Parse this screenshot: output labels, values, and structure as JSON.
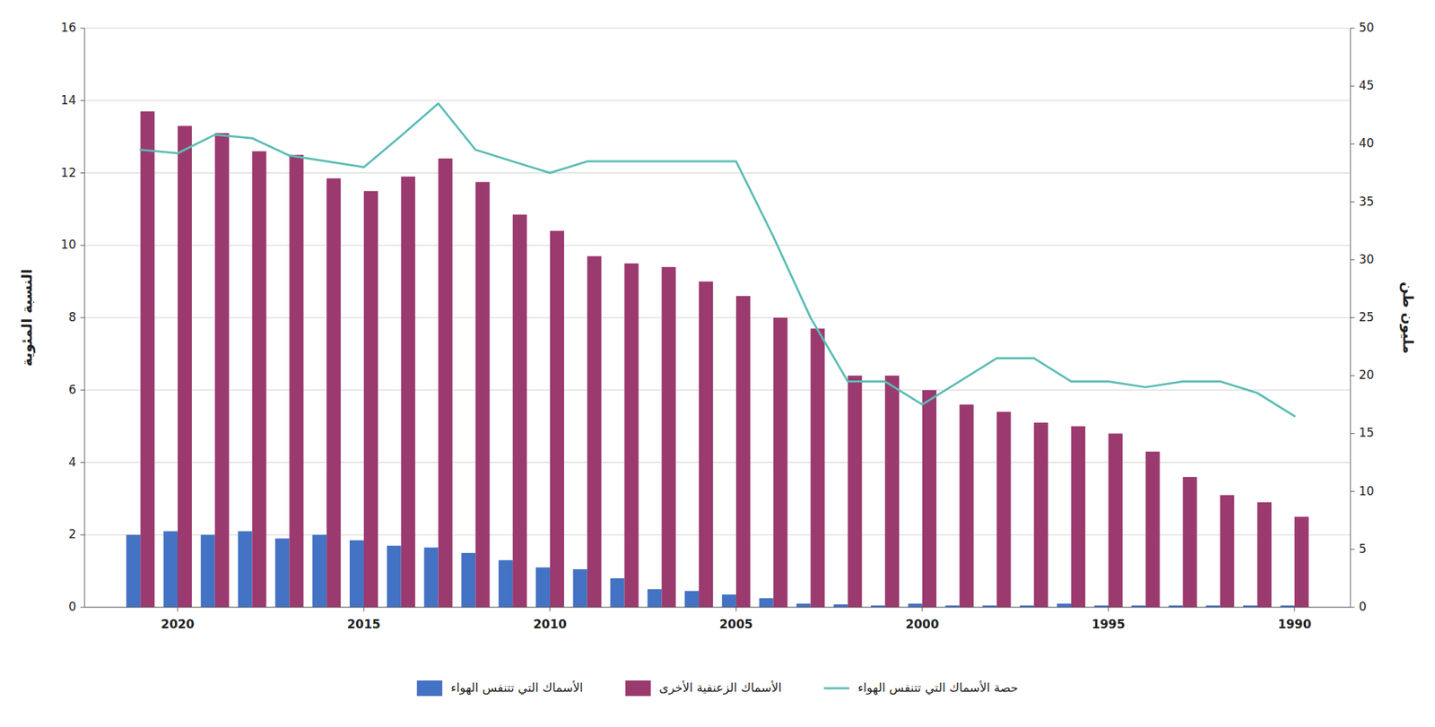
{
  "chart_data": {
    "type": "bar",
    "x": [
      2021,
      2020,
      2019,
      2018,
      2017,
      2016,
      2015,
      2014,
      2013,
      2012,
      2011,
      2010,
      2009,
      2008,
      2007,
      2006,
      2005,
      2004,
      2003,
      2002,
      2001,
      2000,
      1999,
      1998,
      1997,
      1996,
      1995,
      1994,
      1993,
      1992,
      1991,
      1990
    ],
    "xlim": [
      2022.5,
      1988.5
    ],
    "xticks": [
      2020,
      2015,
      2010,
      2005,
      2000,
      1995,
      1990
    ],
    "ylim": [
      0,
      16
    ],
    "yticks": [
      0,
      2,
      4,
      6,
      8,
      10,
      12,
      14,
      16
    ],
    "y2lim": [
      0,
      50
    ],
    "y2ticks": [
      0,
      5,
      10,
      15,
      20,
      25,
      30,
      35,
      40,
      45,
      50
    ],
    "ylabel": "النسبة المئوية",
    "y2label": "مليون طن",
    "grid": true,
    "legend": "bottom",
    "series": [
      {
        "name": "الأسماك التي تتنفس الهواء",
        "color": "#4472c4",
        "values": [
          2.0,
          2.1,
          2.0,
          2.1,
          1.9,
          2.0,
          1.85,
          1.7,
          1.65,
          1.5,
          1.3,
          1.1,
          1.05,
          0.8,
          0.5,
          0.45,
          0.35,
          0.25,
          0.1,
          0.08,
          0.05,
          0.1,
          0.05,
          0.05,
          0.05,
          0.1,
          0.05,
          0.05,
          0.05,
          0.05,
          0.05,
          0.05
        ]
      },
      {
        "name": "الأسماك الزعنفية الأخرى",
        "color": "#9b3a6e",
        "values": [
          13.7,
          13.3,
          13.1,
          12.6,
          12.5,
          11.85,
          11.5,
          11.9,
          12.4,
          11.75,
          10.85,
          10.4,
          9.7,
          9.5,
          9.4,
          9.0,
          8.6,
          8.0,
          7.7,
          6.4,
          6.4,
          6.0,
          5.6,
          5.4,
          5.1,
          5.0,
          4.8,
          4.3,
          3.6,
          3.1,
          2.9,
          2.5
        ]
      },
      {
        "name": "حصة الأسماك التي تتنفس الهواء",
        "color": "#5bbdb5",
        "type": "line",
        "axis": "y2",
        "values": [
          39.5,
          39.2,
          40.8,
          40.5,
          39.0,
          38.5,
          38.0,
          40.7,
          43.5,
          39.5,
          38.5,
          37.5,
          38.5,
          38.5,
          38.5,
          38.5,
          38.5,
          32.0,
          25.0,
          19.5,
          19.5,
          17.5,
          19.5,
          21.5,
          21.5,
          19.5,
          19.5,
          19.0,
          19.5,
          19.5,
          18.5,
          16.5
        ]
      }
    ]
  }
}
